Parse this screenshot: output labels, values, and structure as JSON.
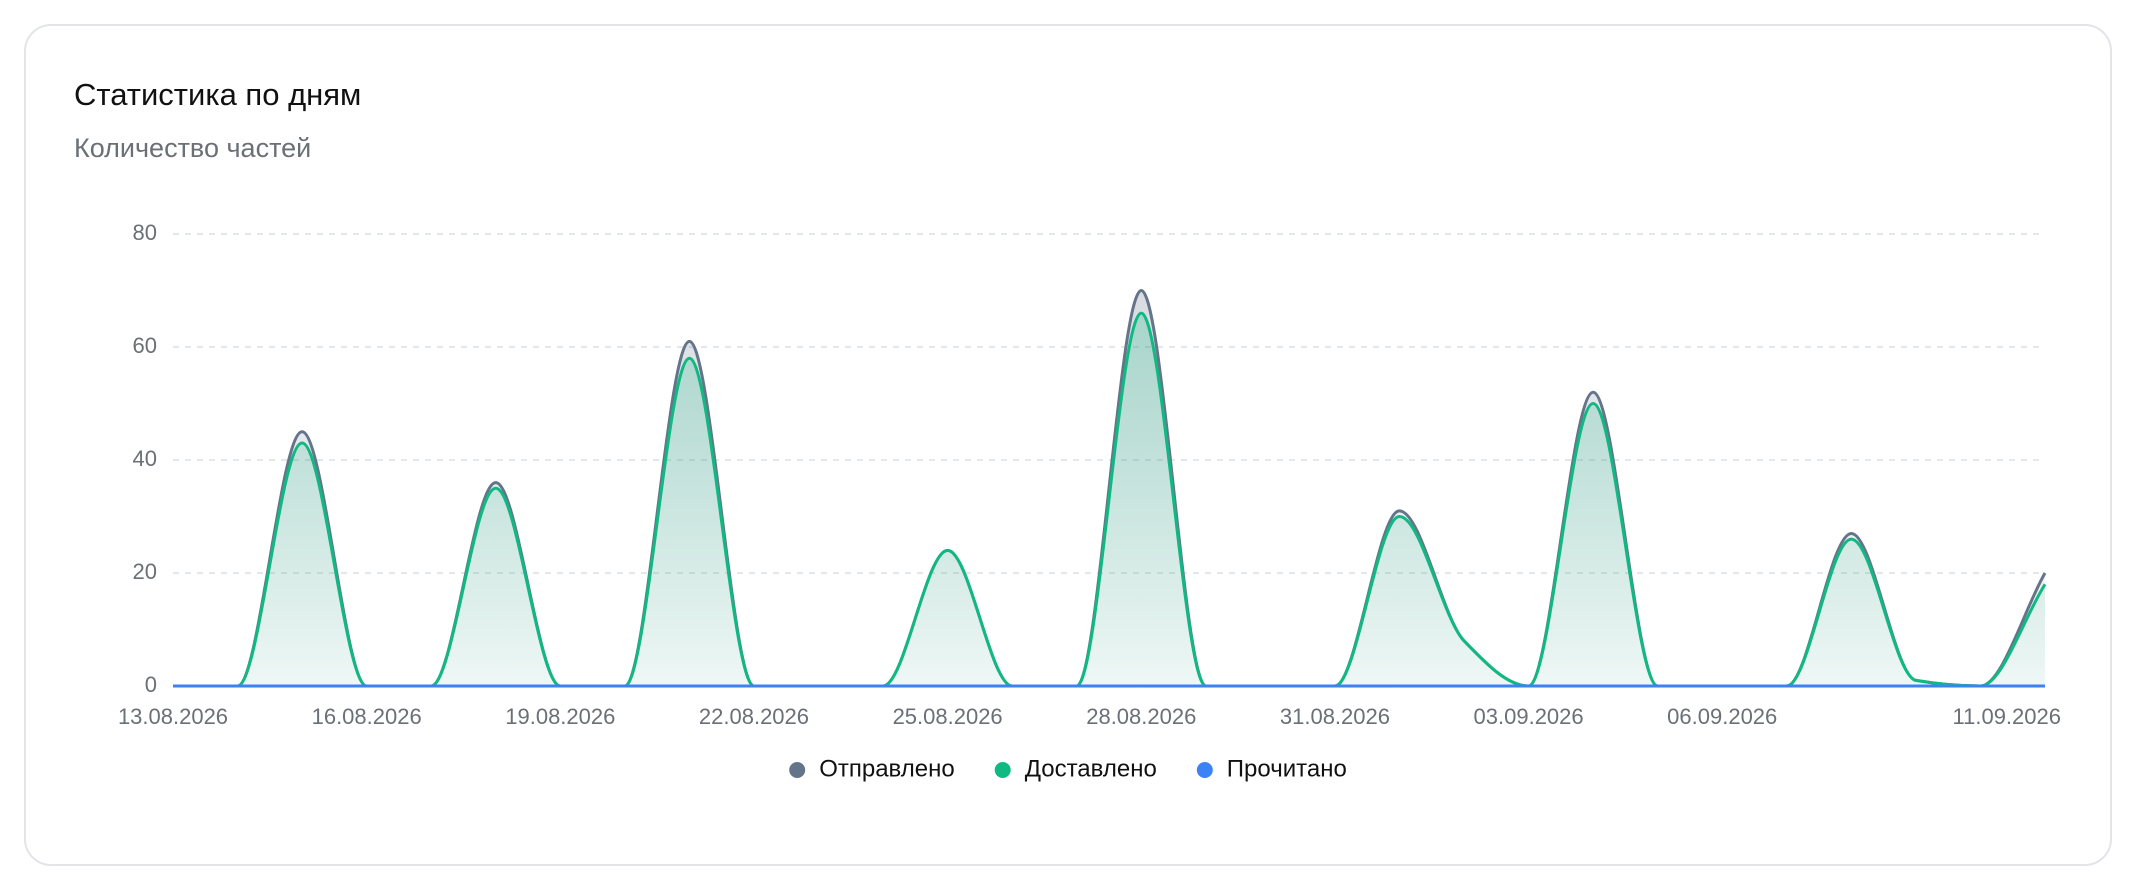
{
  "chart_data": {
    "type": "area",
    "title": "Статистика по дням",
    "subtitle": "Количество частей",
    "categories": [
      "13.08.2026",
      null,
      null,
      "16.08.2026",
      null,
      null,
      "19.08.2026",
      null,
      null,
      "22.08.2026",
      null,
      null,
      "25.08.2026",
      null,
      null,
      "28.08.2026",
      null,
      null,
      "31.08.2026",
      null,
      null,
      "03.09.2026",
      null,
      null,
      "06.09.2026",
      null,
      null,
      null,
      null,
      "11.09.2026"
    ],
    "series": [
      {
        "name": "Отправлено",
        "color": "#64748b",
        "values": [
          0,
          0,
          45,
          0,
          0,
          36,
          0,
          0,
          61,
          0,
          0,
          0,
          24,
          0,
          0,
          70,
          0,
          0,
          0,
          31,
          8,
          0,
          52,
          0,
          0,
          0,
          27,
          1,
          0,
          20
        ]
      },
      {
        "name": "Доставлено",
        "color": "#10b981",
        "values": [
          0,
          0,
          43,
          0,
          0,
          35,
          0,
          0,
          58,
          0,
          0,
          0,
          24,
          0,
          0,
          66,
          0,
          0,
          0,
          30,
          8,
          0,
          50,
          0,
          0,
          0,
          26,
          1,
          0,
          18
        ]
      },
      {
        "name": "Прочитано",
        "color": "#3b82f6",
        "values": [
          0,
          0,
          0,
          0,
          0,
          0,
          0,
          0,
          0,
          0,
          0,
          0,
          0,
          0,
          0,
          0,
          0,
          0,
          0,
          0,
          0,
          0,
          0,
          0,
          0,
          0,
          0,
          0,
          0,
          0
        ]
      }
    ],
    "ylim": [
      0,
      80
    ],
    "yticks": [
      0,
      20,
      40,
      60,
      80
    ],
    "grid": true,
    "legend": "bottom"
  }
}
